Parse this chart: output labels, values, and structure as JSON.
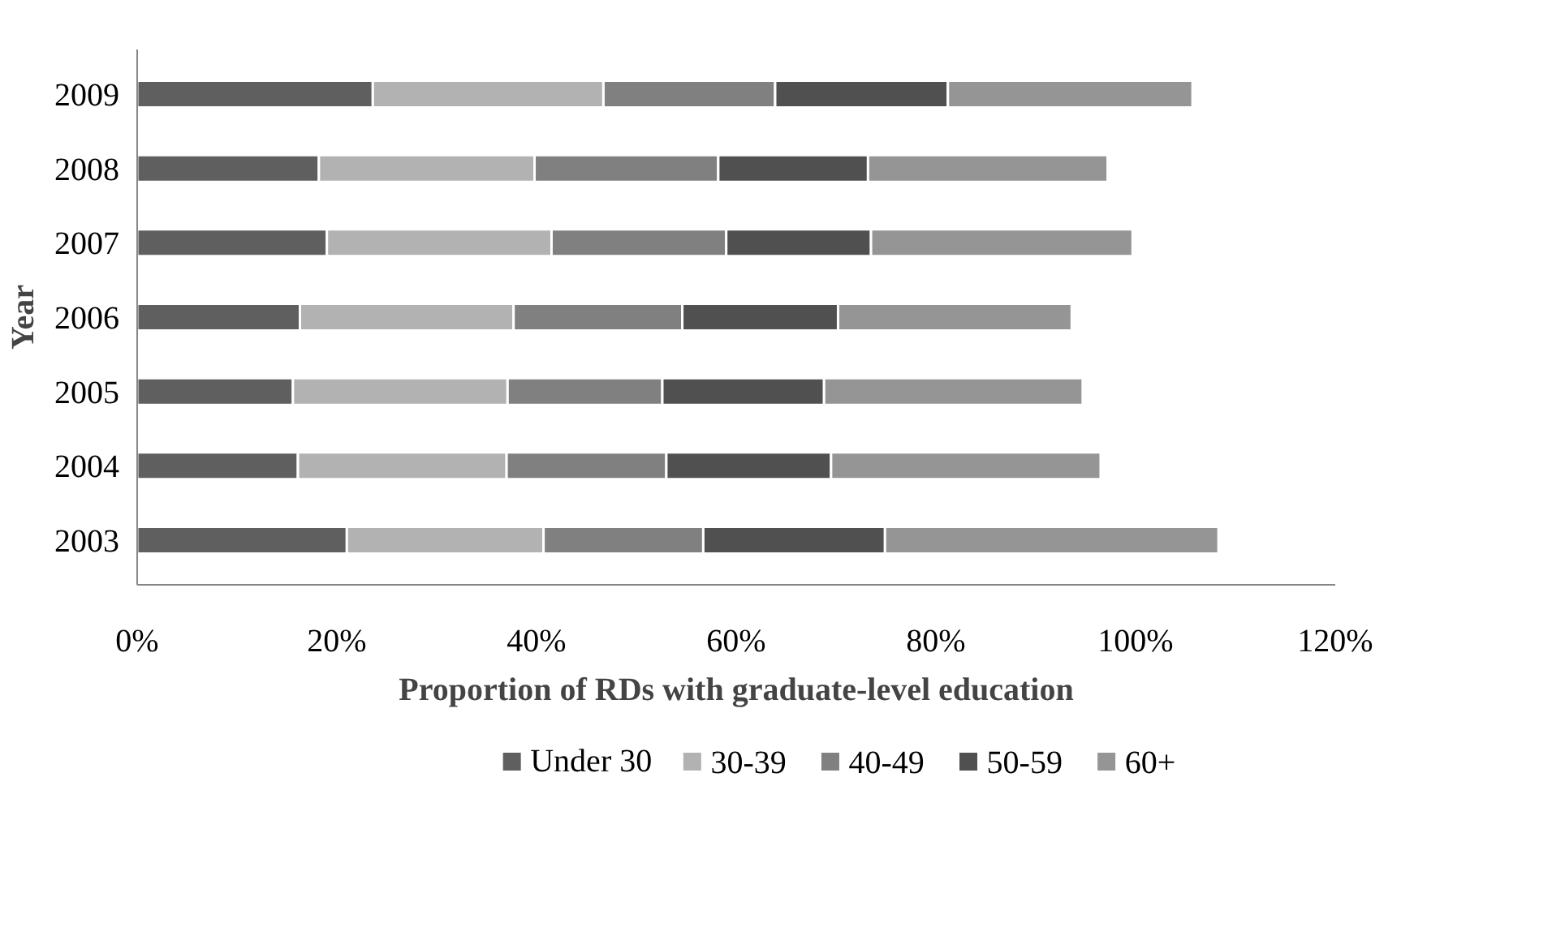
{
  "chart_data": {
    "type": "bar",
    "orientation": "horizontal",
    "stacked": true,
    "xlabel": "Proportion of RDs with graduate-level education",
    "ylabel": "Year",
    "categories": [
      "2009",
      "2008",
      "2007",
      "2006",
      "2005",
      "2004",
      "2003"
    ],
    "series": [
      {
        "name": "Under 30",
        "color": "#5f5f5f",
        "values": [
          23.6,
          18.2,
          19.0,
          16.3,
          15.6,
          16.1,
          21.0
        ]
      },
      {
        "name": "30-39",
        "color": "#b2b2b2",
        "values": [
          23.1,
          21.6,
          22.5,
          21.4,
          21.5,
          20.9,
          19.7
        ]
      },
      {
        "name": "40-49",
        "color": "#808080",
        "values": [
          17.2,
          18.4,
          17.5,
          16.9,
          15.5,
          16.0,
          16.0
        ]
      },
      {
        "name": "50-59",
        "color": "#505050",
        "values": [
          17.3,
          15.0,
          14.5,
          15.6,
          16.2,
          16.5,
          18.2
        ]
      },
      {
        "name": "60+",
        "color": "#959595",
        "values": [
          24.5,
          24.0,
          26.2,
          23.4,
          25.9,
          27.0,
          33.4
        ]
      }
    ],
    "xlim": [
      0,
      120
    ],
    "xticks": [
      {
        "value": 0,
        "label": "0%"
      },
      {
        "value": 20,
        "label": "20%"
      },
      {
        "value": 40,
        "label": "40%"
      },
      {
        "value": 60,
        "label": "60%"
      },
      {
        "value": 80,
        "label": "80%"
      },
      {
        "value": 100,
        "label": "100%"
      },
      {
        "value": 120,
        "label": "120%"
      }
    ],
    "grid": false,
    "legend": "bottom"
  }
}
